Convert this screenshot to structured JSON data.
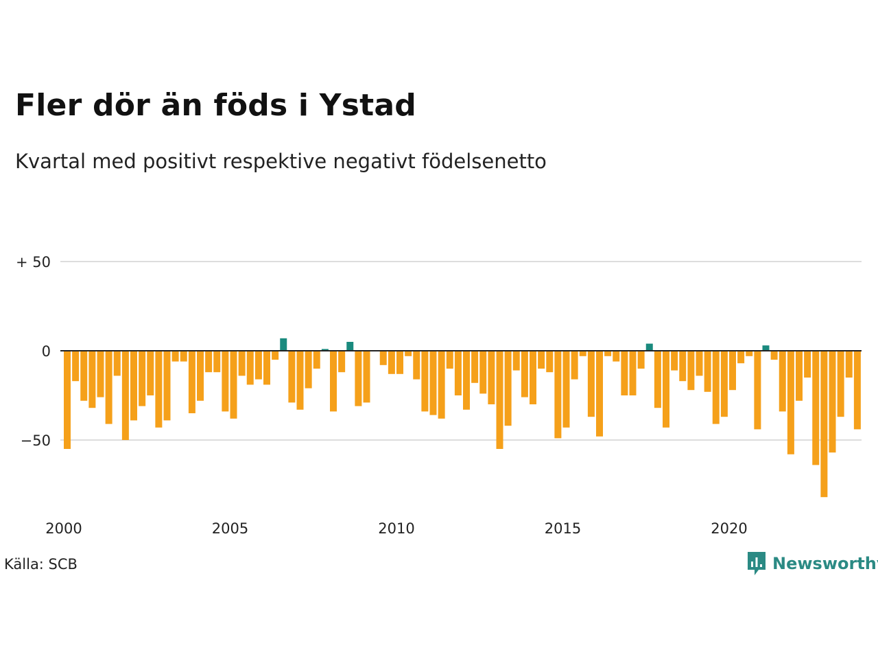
{
  "header": {
    "title": "Fler dör än föds i Ystad",
    "subtitle": "Kvartal med positivt respektive negativt födelsenetto"
  },
  "footer": {
    "source": "Källa: SCB",
    "brand": "Newsworthy"
  },
  "colors": {
    "positive": "#1a8a7e",
    "negative": "#f5a01a",
    "grid": "#dddddd",
    "zero_line": "#222222",
    "brand": "#2b8a84"
  },
  "chart_data": {
    "type": "bar",
    "x_start": "2000 Q1",
    "x_ticks": [
      "2000",
      "2005",
      "2010",
      "2015",
      "2020"
    ],
    "y_ticks": [
      {
        "value": 50,
        "label": "+ 50"
      },
      {
        "value": 0,
        "label": "0"
      },
      {
        "value": -50,
        "label": "−50"
      }
    ],
    "ylim": [
      -85,
      55
    ],
    "grid": true,
    "values": [
      -55,
      -17,
      -28,
      -32,
      -26,
      -41,
      -14,
      -50,
      -39,
      -31,
      -25,
      -43,
      -39,
      -6,
      -6,
      -35,
      -28,
      -12,
      -12,
      -34,
      -38,
      -14,
      -19,
      -16,
      -19,
      -5,
      7,
      -29,
      -33,
      -21,
      -10,
      1,
      -34,
      -12,
      5,
      -31,
      -29,
      0,
      -8,
      -13,
      -13,
      -3,
      -16,
      -34,
      -36,
      -38,
      -10,
      -25,
      -33,
      -18,
      -24,
      -30,
      -55,
      -42,
      -11,
      -26,
      -30,
      -10,
      -12,
      -49,
      -43,
      -16,
      -3,
      -37,
      -48,
      -3,
      -6,
      -25,
      -25,
      -10,
      4,
      -32,
      -43,
      -11,
      -17,
      -22,
      -14,
      -23,
      -41,
      -37,
      -22,
      -7,
      -3,
      -44,
      3,
      -5,
      -34,
      -58,
      -28,
      -15,
      -64,
      -82,
      -57,
      -37,
      -15,
      -44
    ]
  }
}
